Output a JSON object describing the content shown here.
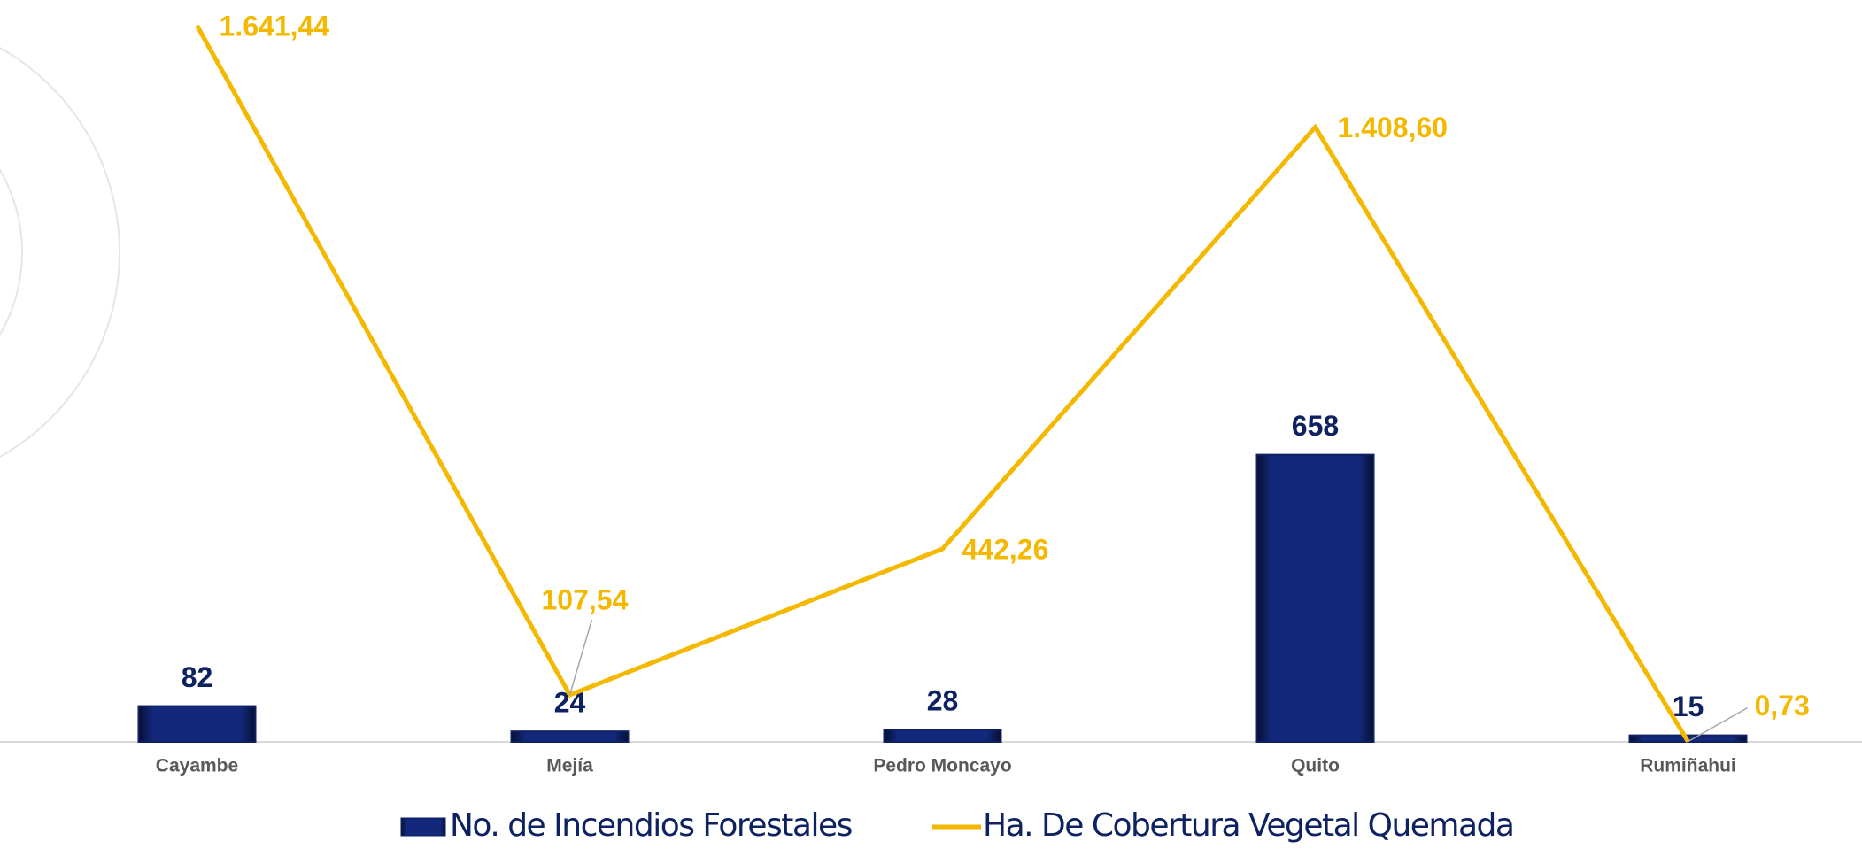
{
  "chart_data": {
    "type": "bar-line",
    "categories": [
      "Cayambe",
      "Mejía",
      "Pedro Moncayo",
      "Quito",
      "Rumiñahui"
    ],
    "series": [
      {
        "name": "No. de Incendios Forestales",
        "type": "bar",
        "color": "#0e2160",
        "values": [
          82,
          24,
          28,
          658,
          15
        ]
      },
      {
        "name": "Ha. De Cobertura Vegetal Quemada",
        "type": "line",
        "axis": "y2",
        "color": "#f5b800",
        "values": [
          1641.44,
          107.54,
          442.26,
          1408.6,
          0.73
        ],
        "value_labels": [
          "1.641,44",
          "107,54",
          "442,26",
          "1.408,60",
          "0,73"
        ]
      }
    ],
    "ylim": [
      0,
      1700
    ],
    "y2lim": [
      0,
      1700
    ],
    "legend": "bottom"
  }
}
